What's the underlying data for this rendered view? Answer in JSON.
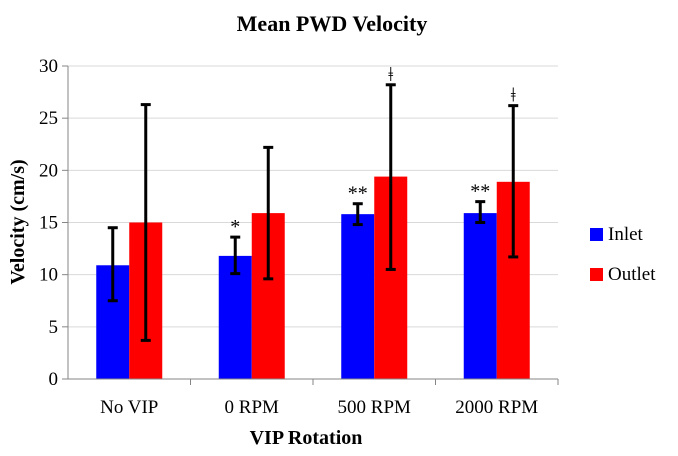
{
  "chart_data": {
    "type": "bar",
    "title": "Mean PWD Velocity",
    "xlabel": "VIP Rotation",
    "ylabel": "Velocity (cm/s)",
    "ylim": [
      0,
      30
    ],
    "yticks": [
      0,
      5,
      10,
      15,
      20,
      25,
      30
    ],
    "grid": true,
    "legend_position": "right",
    "categories": [
      "No VIP",
      "0 RPM",
      "500 RPM",
      "2000 RPM"
    ],
    "series": [
      {
        "name": "Inlet",
        "color": "#0000FF",
        "values": [
          10.9,
          11.8,
          15.8,
          15.9
        ],
        "error_low": [
          7.5,
          10.1,
          14.8,
          15.0
        ],
        "error_high": [
          14.5,
          13.6,
          16.8,
          17.0
        ],
        "annotations": [
          "",
          "*",
          "**",
          "**"
        ]
      },
      {
        "name": "Outlet",
        "color": "#FF0000",
        "values": [
          15.0,
          15.9,
          19.4,
          18.9
        ],
        "error_low": [
          3.7,
          9.6,
          10.5,
          11.7
        ],
        "error_high": [
          26.3,
          22.2,
          28.2,
          26.2
        ],
        "annotations": [
          "",
          "",
          "ǂ",
          "ǂ"
        ]
      }
    ]
  }
}
